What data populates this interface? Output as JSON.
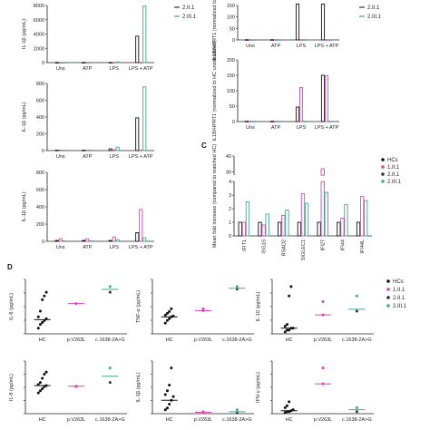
{
  "colors": {
    "HCs": "#111111",
    "1.II.1": "#e040b4",
    "2.III.1": "#3aa88c",
    "2.II.1": "#333333"
  },
  "panel_labels": {
    "C": "C",
    "D": "D"
  },
  "chart_data": [
    {
      "id": "A1",
      "type": "bar",
      "ylabel": "IL-1β (pg/mL)",
      "ylim": [
        0,
        8000
      ],
      "yticks": [
        "0",
        "2000",
        "4000",
        "6000",
        "8000"
      ],
      "categories": [
        "Uns",
        "ATP",
        "LPS",
        "LPS + ATP"
      ],
      "legend": [
        "2.II.1",
        "2.III.1"
      ],
      "series": [
        {
          "name": "HCs",
          "values": [
            20,
            20,
            20,
            3700
          ]
        },
        {
          "name": "1.II.1",
          "values": [
            20,
            20,
            20,
            20
          ]
        },
        {
          "name": "2.III.1",
          "values": [
            20,
            20,
            100,
            7900
          ]
        }
      ]
    },
    {
      "id": "A2",
      "type": "bar",
      "ylabel": "IL-1β (pg/mL)",
      "ylim": [
        0,
        800
      ],
      "yticks": [
        "0",
        "200",
        "400",
        "600",
        "800"
      ],
      "categories": [
        "Uns",
        "ATP",
        "LPS",
        "LPS + ATP"
      ],
      "series": [
        {
          "name": "HCs",
          "values": [
            5,
            5,
            20,
            390
          ]
        },
        {
          "name": "1.II.1",
          "values": [
            5,
            5,
            10,
            5
          ]
        },
        {
          "name": "2.III.1",
          "values": [
            5,
            5,
            40,
            760
          ]
        }
      ]
    },
    {
      "id": "A3",
      "type": "bar",
      "ylabel": "IL-1β (pg/mL)",
      "ylim": [
        0,
        800
      ],
      "yticks": [
        "0",
        "200",
        "400",
        "600",
        "800"
      ],
      "categories": [
        "Uns",
        "ATP",
        "LPS",
        "LPS + ATP"
      ],
      "series": [
        {
          "name": "HCs",
          "values": [
            10,
            10,
            10,
            100
          ]
        },
        {
          "name": "1.II.1",
          "values": [
            30,
            30,
            50,
            370
          ]
        },
        {
          "name": "2.III.1",
          "values": [
            5,
            5,
            20,
            40
          ]
        }
      ]
    },
    {
      "id": "B1",
      "type": "bar",
      "ylabel": "IL1B/HPRT1 (normalized to HC...)",
      "ylim": [
        0,
        150
      ],
      "yticks": [
        "0",
        "50",
        "100",
        "150"
      ],
      "categories": [
        "Uns",
        "ATP",
        "LPS",
        "LPS + ATP"
      ],
      "legend": [
        "2.II.1",
        "2.III.1"
      ],
      "series": [
        {
          "name": "HCs",
          "values": [
            1,
            1,
            160,
            160
          ]
        },
        {
          "name": "1.II.1",
          "values": [
            1,
            1,
            1,
            1
          ]
        },
        {
          "name": "2.III.1",
          "values": [
            1,
            1,
            1,
            1
          ]
        }
      ]
    },
    {
      "id": "B2",
      "type": "bar",
      "ylabel": "IL1B/HPRT1 (normalized to HC unstimulated)",
      "ylim": [
        0,
        200
      ],
      "yticks": [
        "0",
        "50",
        "100",
        "150",
        "200"
      ],
      "categories": [
        "Uns",
        "ATP",
        "LPS",
        "LPS + ATP"
      ],
      "series": [
        {
          "name": "HCs",
          "values": [
            1,
            1,
            47,
            150
          ]
        },
        {
          "name": "1.II.1",
          "values": [
            1,
            1,
            110,
            148
          ]
        },
        {
          "name": "2.III.1",
          "values": [
            1,
            1,
            1,
            1
          ]
        }
      ]
    },
    {
      "id": "C",
      "type": "bar",
      "ylabel": "Mean fold increase (compared to matched HC)",
      "yticks_bottom": [
        "0",
        "1",
        "2",
        "3",
        "4"
      ],
      "yticks_top": [
        "30",
        "40"
      ],
      "categories": [
        "IFIT1",
        "ISG15",
        "RSAD2",
        "SIGLEC1",
        "IFI27",
        "IFI44",
        "IFI44L"
      ],
      "legend": [
        "HCs",
        "1.II.1",
        "2.II.1",
        "2.III.1"
      ],
      "series": [
        {
          "name": "HCs",
          "values": [
            1,
            1,
            1,
            1,
            1,
            1,
            1
          ]
        },
        {
          "name": "1.II.1",
          "values": [
            1.0,
            0.8,
            1.5,
            3.1,
            32,
            1.3,
            2.9
          ]
        },
        {
          "name": "2.III.1",
          "values": [
            2.5,
            1.6,
            1.9,
            2.4,
            3.2,
            2.3,
            2.6
          ]
        }
      ]
    },
    {
      "id": "D1",
      "type": "scatter",
      "ylabel": "IL-6 (pg/mL)",
      "categories": [
        "HC",
        "p.V263L",
        "c.1638-2A>G"
      ],
      "legend": [
        "HCs",
        "1.II.1",
        "2.II.1",
        "2.III.1"
      ],
      "points": {
        "HC": [
          0.3,
          0.5,
          0.6,
          0.7,
          0.8,
          0.9,
          1.2,
          1.8,
          2.0,
          2.2
        ],
        "p.V263L": [
          1.6
        ],
        "c.1638-2A>G": [
          2.2,
          2.5
        ]
      },
      "medians": [
        0.75,
        1.6,
        2.35
      ]
    },
    {
      "id": "D2",
      "type": "scatter",
      "ylabel": "TNF-α (pg/mL)",
      "categories": [
        "HC",
        "p.V263L",
        "c.1638-2A>G"
      ],
      "points": {
        "HC": [
          1.2,
          1.5,
          1.7,
          1.9,
          2.0,
          2.1,
          2.3,
          2.5,
          2.8
        ],
        "p.V263L": [
          2.6,
          2.8
        ],
        "c.1638-2A>G": [
          5.0,
          5.3
        ]
      },
      "medians": [
        1.9,
        2.6,
        5.1
      ]
    },
    {
      "id": "D3",
      "type": "scatter",
      "ylabel": "IL-10 (pg/mL)",
      "categories": [
        "HC",
        "p.V263L",
        "c.1638-2A>G"
      ],
      "points": {
        "HC": [
          0.1,
          0.2,
          0.2,
          0.3,
          0.3,
          0.4,
          0.5,
          2.0,
          2.5
        ],
        "p.V263L": [
          1.0,
          1.7
        ],
        "c.1638-2A>G": [
          1.2,
          2.0
        ]
      },
      "medians": [
        0.3,
        1.0,
        1.3
      ]
    },
    {
      "id": "D4",
      "type": "scatter",
      "ylabel": "IL-8 (pg/mL)",
      "categories": [
        "HC",
        "p.V263L",
        "c.1638-2A>G"
      ],
      "points": {
        "HC": [
          10,
          11,
          12,
          13,
          13.5,
          14,
          15,
          17,
          19,
          20
        ],
        "p.V263L": [
          13,
          13.2
        ],
        "c.1638-2A>G": [
          15,
          22
        ]
      },
      "medians": [
        13.5,
        13.2,
        18
      ]
    },
    {
      "id": "D5",
      "type": "scatter",
      "ylabel": "IL-1β (pg/mL)",
      "categories": [
        "HC",
        "p.V263L",
        "c.1638-2A>G"
      ],
      "points": {
        "HC": [
          0.2,
          0.3,
          0.5,
          0.7,
          0.9,
          1.0,
          1.2,
          1.5,
          2.4
        ],
        "p.V263L": [
          0.05,
          0.1
        ],
        "c.1638-2A>G": [
          0.05,
          0.2
        ]
      },
      "medians": [
        0.7,
        0.07,
        0.1
      ]
    },
    {
      "id": "D6",
      "type": "scatter",
      "ylabel": "IFN-γ (pg/mL)",
      "categories": [
        "HC",
        "p.V263L",
        "c.1638-2A>G"
      ],
      "points": {
        "HC": [
          0.05,
          0.1,
          0.1,
          0.15,
          0.2,
          0.3,
          0.4,
          0.6
        ],
        "p.V263L": [
          1.5,
          2.3
        ],
        "c.1638-2A>G": [
          0.1,
          0.3
        ]
      },
      "medians": [
        0.15,
        1.5,
        0.2
      ]
    }
  ]
}
